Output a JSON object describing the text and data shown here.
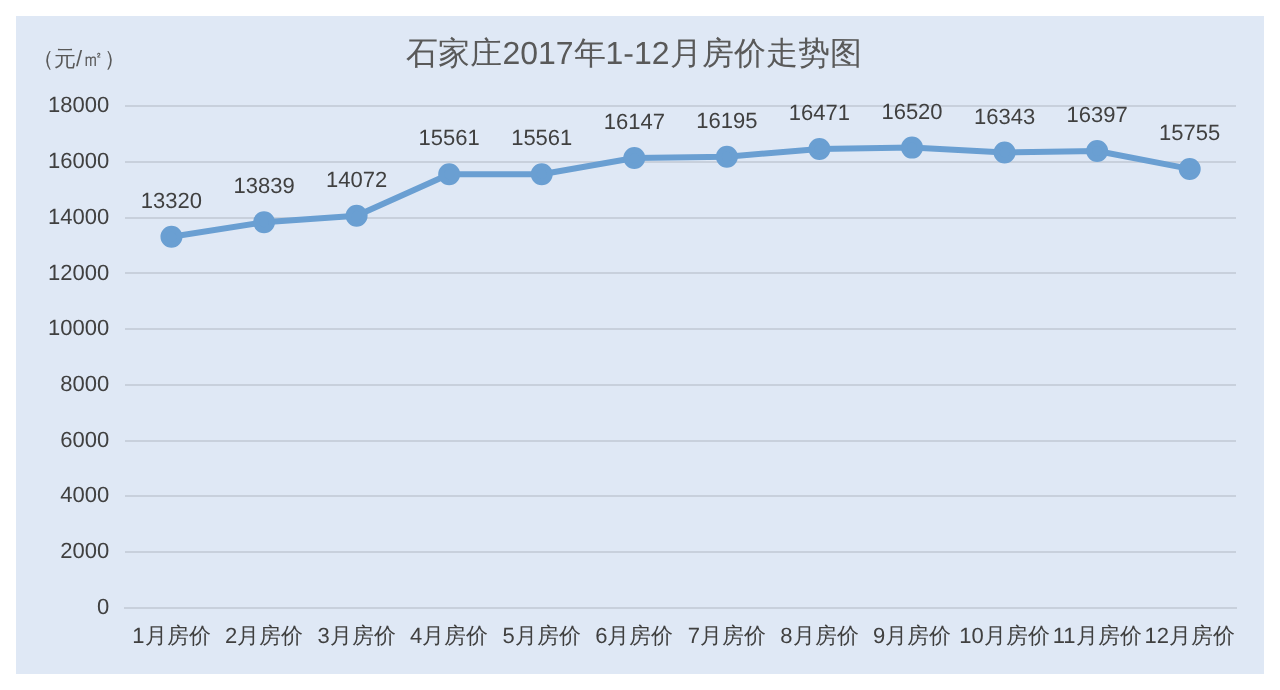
{
  "chart_data": {
    "type": "line",
    "title": "石家庄2017年1-12月房价走势图",
    "ylabel": "（元/㎡）",
    "categories": [
      "1月房价",
      "2月房价",
      "3月房价",
      "4月房价",
      "5月房价",
      "6月房价",
      "7月房价",
      "8月房价",
      "9月房价",
      "10月房价",
      "11月房价",
      "12月房价"
    ],
    "series": [
      {
        "color": "#6a9fd2",
        "values": [
          13320,
          13839,
          14072,
          15561,
          15561,
          16147,
          16195,
          16471,
          16520,
          16343,
          16397,
          15755
        ]
      }
    ],
    "ylim": [
      0,
      18000
    ],
    "yticks": [
      0,
      2000,
      4000,
      6000,
      8000,
      10000,
      12000,
      14000,
      16000,
      18000
    ],
    "grid": "y",
    "marker": "circle",
    "line_style": "solid",
    "data_labels": true,
    "legend": false
  }
}
